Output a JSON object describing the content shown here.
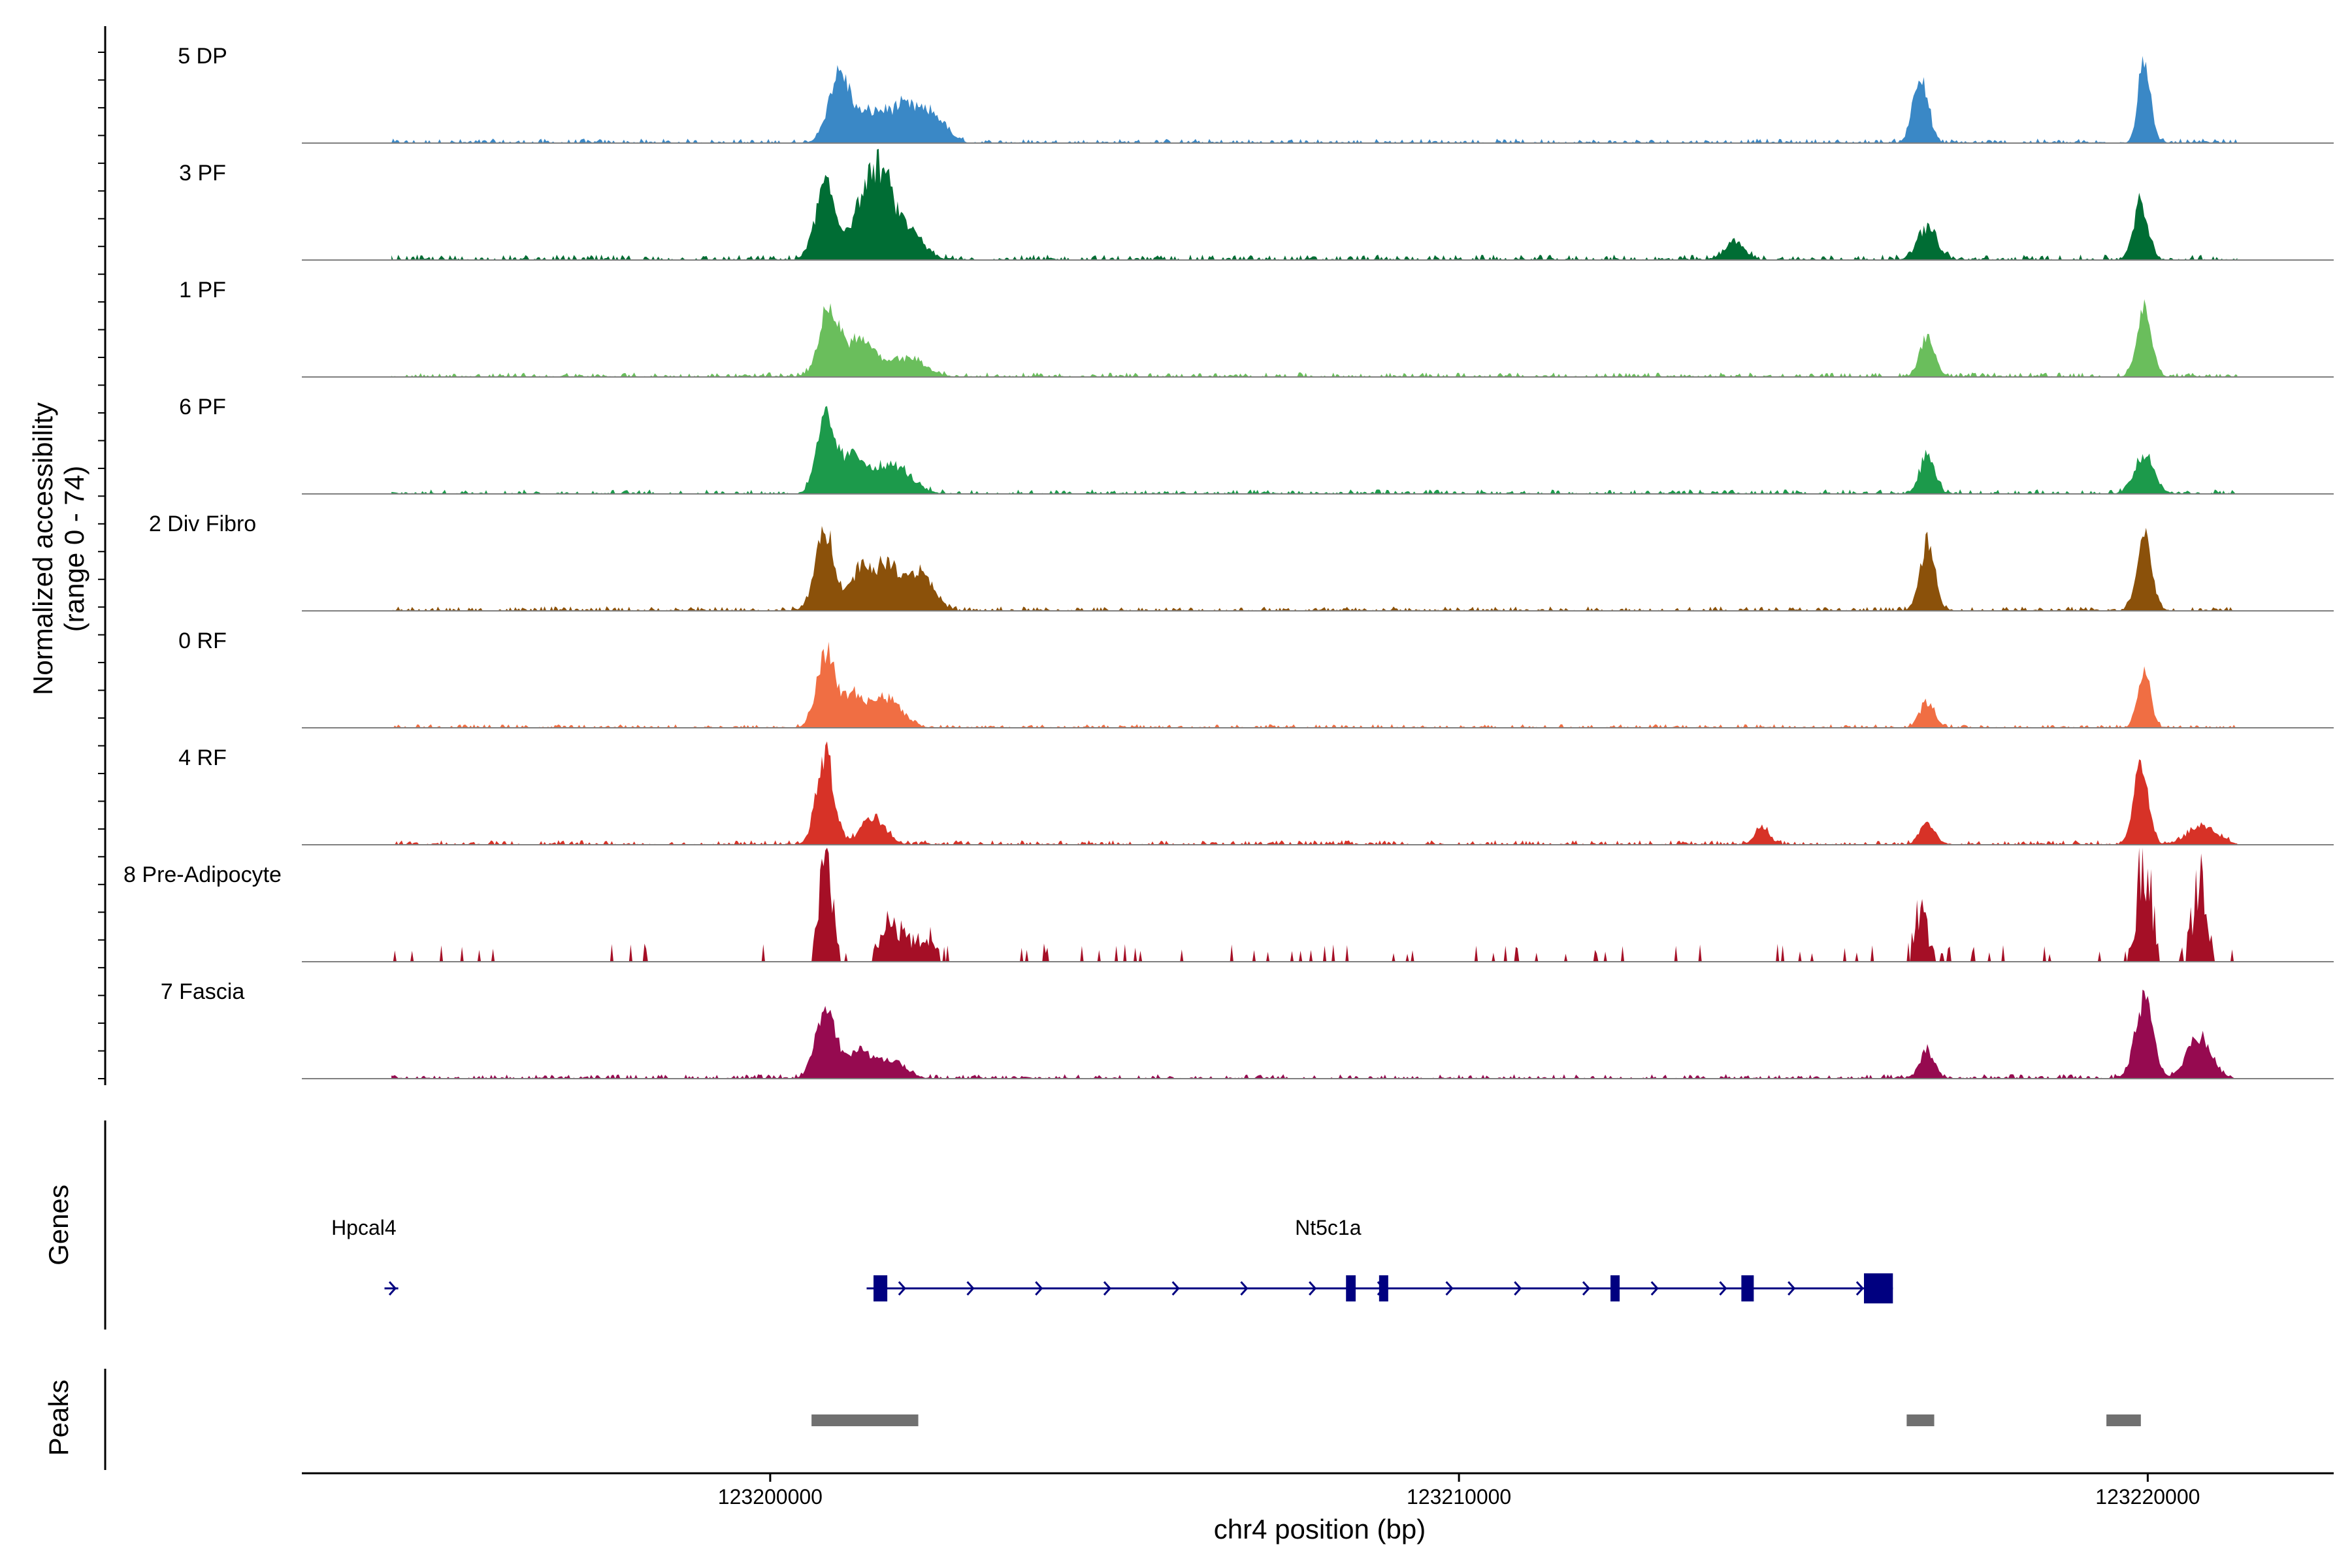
{
  "chart_data": {
    "type": "area",
    "title": "",
    "ylabel_line1": "Normalized accessibility",
    "ylabel_line2": "(range 0 - 74)",
    "xlabel": "chr4 position (bp)",
    "x_range": [
      123193200,
      123222700
    ],
    "y_range": [
      0,
      74
    ],
    "x_ticks": [
      {
        "value": 123200000,
        "label": "123200000"
      },
      {
        "value": 123210000,
        "label": "123210000"
      },
      {
        "value": 123220000,
        "label": "123220000"
      }
    ],
    "tracks": [
      {
        "name": "5 DP",
        "color": "#3A88C6",
        "noise": 0.05,
        "peaks": [
          [
            123201000,
            0.72,
            220
          ],
          [
            123201500,
            0.32,
            350
          ],
          [
            123202000,
            0.35,
            300
          ],
          [
            123202400,
            0.25,
            250
          ],
          [
            123216700,
            0.78,
            150
          ],
          [
            123219950,
            0.92,
            120
          ]
        ]
      },
      {
        "name": "3 PF",
        "color": "#006D34",
        "noise": 0.06,
        "peaks": [
          [
            123200800,
            0.8,
            200
          ],
          [
            123201300,
            0.45,
            250
          ],
          [
            123201600,
            0.85,
            250
          ],
          [
            123202000,
            0.3,
            300
          ],
          [
            123214000,
            0.2,
            200
          ],
          [
            123216800,
            0.35,
            200
          ],
          [
            123219900,
            0.6,
            150
          ]
        ]
      },
      {
        "name": "1 PF",
        "color": "#6ABE5C",
        "noise": 0.05,
        "peaks": [
          [
            123200850,
            0.7,
            200
          ],
          [
            123201300,
            0.4,
            300
          ],
          [
            123202000,
            0.2,
            350
          ],
          [
            123216800,
            0.45,
            150
          ],
          [
            123219950,
            0.72,
            150
          ]
        ]
      },
      {
        "name": "6 PF",
        "color": "#1C9A4B",
        "noise": 0.05,
        "peaks": [
          [
            123200800,
            0.75,
            180
          ],
          [
            123201200,
            0.4,
            300
          ],
          [
            123201800,
            0.3,
            350
          ],
          [
            123216800,
            0.42,
            150
          ],
          [
            123219950,
            0.42,
            200
          ]
        ]
      },
      {
        "name": "2 Div Fibro",
        "color": "#8B510A",
        "noise": 0.05,
        "peaks": [
          [
            123200800,
            0.85,
            200
          ],
          [
            123201300,
            0.4,
            200
          ],
          [
            123201700,
            0.5,
            300
          ],
          [
            123202200,
            0.4,
            250
          ],
          [
            123216800,
            0.72,
            150
          ],
          [
            123219950,
            0.85,
            150
          ]
        ]
      },
      {
        "name": "0 RF",
        "color": "#F06E43",
        "noise": 0.04,
        "peaks": [
          [
            123200800,
            0.82,
            180
          ],
          [
            123201200,
            0.35,
            250
          ],
          [
            123201700,
            0.32,
            300
          ],
          [
            123216800,
            0.28,
            150
          ],
          [
            123219950,
            0.6,
            130
          ]
        ]
      },
      {
        "name": "4 RF",
        "color": "#D73227",
        "noise": 0.05,
        "peaks": [
          [
            123200800,
            0.98,
            180
          ],
          [
            123201500,
            0.3,
            250
          ],
          [
            123214400,
            0.18,
            150
          ],
          [
            123216800,
            0.25,
            150
          ],
          [
            123219900,
            0.85,
            150
          ],
          [
            123220800,
            0.2,
            300
          ]
        ]
      },
      {
        "name": "8 Pre-Adipocyte",
        "color": "#A50F26",
        "noise": 0.0,
        "peaks": [
          [
            123200800,
            1.05,
            150
          ],
          [
            123201800,
            0.5,
            250
          ],
          [
            123202300,
            0.3,
            200
          ],
          [
            123216700,
            0.65,
            150
          ],
          [
            123219950,
            1.25,
            150
          ],
          [
            123220750,
            0.95,
            150
          ]
        ]
      },
      {
        "name": "7 Fascia",
        "color": "#960A50",
        "noise": 0.05,
        "peaks": [
          [
            123200800,
            0.75,
            200
          ],
          [
            123201300,
            0.3,
            300
          ],
          [
            123201800,
            0.18,
            250
          ],
          [
            123216800,
            0.3,
            150
          ],
          [
            123219950,
            0.85,
            180
          ],
          [
            123220750,
            0.45,
            250
          ]
        ]
      }
    ],
    "genes_label": "Genes",
    "genes": [
      {
        "name": "Hpcal4",
        "label_x": 123194100,
        "start": 123194400,
        "end": 123194600,
        "exons": []
      },
      {
        "name": "Nt5c1a",
        "label_x": 123208100,
        "start": 123201400,
        "end": 123216300,
        "exons": [
          [
            123201500,
            123201700
          ],
          [
            123208360,
            123208500
          ],
          [
            123208840,
            123208960
          ],
          [
            123212200,
            123212320
          ],
          [
            123214100,
            123214280
          ],
          [
            123215880,
            123216300
          ]
        ]
      }
    ],
    "peaks_label": "Peaks",
    "peak_regions": [
      [
        123200600,
        123202150
      ],
      [
        123216500,
        123216900
      ],
      [
        123219400,
        123219900
      ]
    ]
  }
}
